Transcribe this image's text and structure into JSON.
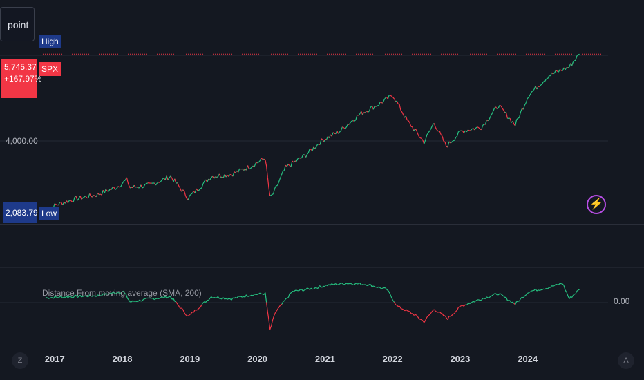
{
  "symbol_input": {
    "value": "point"
  },
  "tags": {
    "high": "High",
    "symbol": "SPX",
    "low": "Low"
  },
  "price": {
    "current": "5,745.37",
    "change": "+167.97%",
    "low_value": "2,083.79"
  },
  "y_axis": {
    "tick_label": "4,000.00"
  },
  "indicator": {
    "title": "Distance From moving average (SMA, 200)",
    "zero_label": "0.00"
  },
  "buttons": {
    "left_corner": "Z",
    "right_corner": "A"
  },
  "colors": {
    "up": "#26c281",
    "down": "#f23645",
    "background": "#141821",
    "accent": "#b84ee5"
  },
  "icons": {
    "alert": "lightning-icon"
  },
  "chart_data": [
    {
      "type": "line",
      "title": "",
      "series": [
        {
          "name": "SPX",
          "x": [
            2016.85,
            2017.0,
            2017.3,
            2017.6,
            2017.9,
            2018.05,
            2018.1,
            2018.4,
            2018.7,
            2018.96,
            2019.3,
            2019.6,
            2019.9,
            2020.1,
            2020.17,
            2020.22,
            2020.4,
            2020.7,
            2020.95,
            2021.2,
            2021.5,
            2021.8,
            2021.99,
            2022.2,
            2022.45,
            2022.6,
            2022.78,
            2023.0,
            2023.3,
            2023.55,
            2023.8,
            2024.0,
            2024.3,
            2024.6,
            2024.75
          ],
          "values": [
            2083.79,
            2240,
            2380,
            2470,
            2650,
            2820,
            2640,
            2700,
            2900,
            2400,
            2900,
            2950,
            3150,
            3330,
            2400,
            2500,
            3100,
            3400,
            3750,
            3950,
            4350,
            4600,
            4790,
            4200,
            3700,
            4150,
            3600,
            3950,
            4050,
            4550,
            4100,
            4800,
            5250,
            5450,
            5745.37
          ]
        }
      ],
      "ylim": [
        1700,
        6200
      ],
      "y_ticks": [
        4000
      ],
      "x_ticks": [
        "2017",
        "2018",
        "2019",
        "2020",
        "2021",
        "2022",
        "2023",
        "2024"
      ],
      "annotations": {
        "high": 5745.37,
        "low": 2083.79
      }
    },
    {
      "type": "line",
      "title": "Distance From moving average (SMA, 200)",
      "series": [
        {
          "name": "Distance From moving average (SMA, 200)",
          "x": [
            2016.85,
            2017.2,
            2017.6,
            2018.0,
            2018.1,
            2018.4,
            2018.7,
            2018.96,
            2019.3,
            2019.6,
            2019.9,
            2020.1,
            2020.17,
            2020.25,
            2020.5,
            2020.8,
            2021.0,
            2021.3,
            2021.6,
            2021.9,
            2022.05,
            2022.3,
            2022.45,
            2022.6,
            2022.8,
            2023.0,
            2023.3,
            2023.55,
            2023.8,
            2024.0,
            2024.3,
            2024.5,
            2024.6,
            2024.75
          ],
          "values": [
            0.06,
            0.07,
            0.08,
            0.12,
            0.02,
            0.05,
            0.07,
            -0.12,
            0.07,
            0.05,
            0.09,
            0.1,
            -0.25,
            -0.08,
            0.12,
            0.15,
            0.18,
            0.2,
            0.19,
            0.14,
            -0.02,
            -0.1,
            -0.17,
            -0.05,
            -0.14,
            -0.02,
            0.05,
            0.1,
            0.0,
            0.12,
            0.16,
            0.2,
            0.05,
            0.14
          ]
        }
      ],
      "ylim": [
        -0.3,
        0.3
      ],
      "y_ticks": [
        0
      ]
    }
  ]
}
